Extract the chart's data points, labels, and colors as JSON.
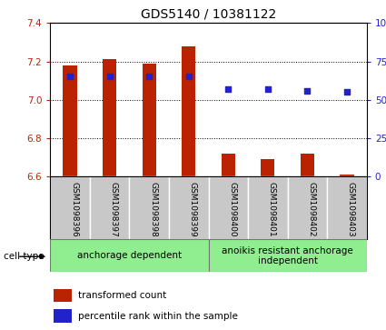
{
  "title": "GDS5140 / 10381122",
  "categories": [
    "GSM1098396",
    "GSM1098397",
    "GSM1098398",
    "GSM1098399",
    "GSM1098400",
    "GSM1098401",
    "GSM1098402",
    "GSM1098403"
  ],
  "bar_values": [
    7.18,
    7.21,
    7.19,
    7.28,
    6.72,
    6.69,
    6.72,
    6.61
  ],
  "bar_bottom": 6.6,
  "percentile_values": [
    65,
    65,
    65,
    65,
    57,
    57,
    56,
    55
  ],
  "ylim_left": [
    6.6,
    7.4
  ],
  "ylim_right": [
    0,
    100
  ],
  "yticks_left": [
    6.6,
    6.8,
    7.0,
    7.2,
    7.4
  ],
  "yticks_right": [
    0,
    25,
    50,
    75,
    100
  ],
  "ytick_labels_right": [
    "0",
    "25",
    "50",
    "75",
    "100%"
  ],
  "bar_color": "#bb2200",
  "dot_color": "#2222cc",
  "group1_label": "anchorage dependent",
  "group2_label": "anoikis resistant anchorage\nindependent",
  "group1_color": "#90ee90",
  "group2_color": "#90ee90",
  "cell_type_label": "cell type",
  "legend_bar_label": "transformed count",
  "legend_dot_label": "percentile rank within the sample",
  "title_fontsize": 10,
  "tick_fontsize": 7.5,
  "cat_fontsize": 6.5,
  "group_fontsize": 7.5,
  "legend_fontsize": 7.5
}
